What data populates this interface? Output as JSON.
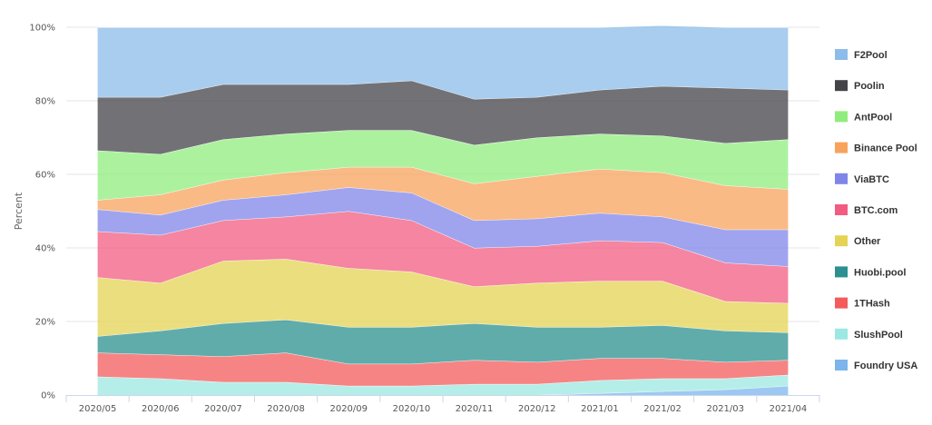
{
  "chart_data": {
    "type": "area",
    "stacked": "percent",
    "title": "",
    "xlabel": "",
    "ylabel": "Percent",
    "ylim": [
      0,
      100
    ],
    "y_ticks": [
      "0%",
      "20%",
      "40%",
      "60%",
      "80%",
      "100%"
    ],
    "grid": "horizontal",
    "legend_position": "right",
    "categories": [
      "2020/05",
      "2020/06",
      "2020/07",
      "2020/08",
      "2020/09",
      "2020/10",
      "2020/11",
      "2020/12",
      "2021/01",
      "2021/02",
      "2021/03",
      "2021/04"
    ],
    "series": [
      {
        "name": "Foundry USA",
        "color": "#7cb5ec",
        "values": [
          0,
          0,
          0,
          0,
          0,
          0,
          0,
          0,
          0.5,
          1,
          1.5,
          2.5
        ]
      },
      {
        "name": "SlushPool",
        "color": "#9ce8e2",
        "values": [
          5,
          4.5,
          3.5,
          3.5,
          2.5,
          2.5,
          3,
          3,
          3.5,
          3.5,
          3,
          3
        ]
      },
      {
        "name": "1THash",
        "color": "#f45b5b",
        "values": [
          6.5,
          6.5,
          7,
          8,
          6,
          6,
          6.5,
          6,
          6,
          5.5,
          4.5,
          4
        ]
      },
      {
        "name": "Huobi.pool",
        "color": "#2b908f",
        "values": [
          4.5,
          6.5,
          9,
          9,
          10,
          10,
          10,
          9.5,
          8.5,
          9,
          8.5,
          7.5
        ]
      },
      {
        "name": "Other",
        "color": "#e4d354",
        "values": [
          16,
          13,
          17,
          16.5,
          16,
          15,
          10,
          12,
          12.5,
          12,
          8,
          8
        ]
      },
      {
        "name": "BTC.com",
        "color": "#f15c80",
        "values": [
          12.5,
          13,
          11,
          11.5,
          15.5,
          14,
          10.5,
          10,
          11,
          10.5,
          10.5,
          10
        ]
      },
      {
        "name": "ViaBTC",
        "color": "#8085e9",
        "values": [
          6,
          5.5,
          5.5,
          6,
          6.5,
          7.5,
          7.5,
          7.5,
          7.5,
          7,
          9,
          10
        ]
      },
      {
        "name": "Binance Pool",
        "color": "#f7a35c",
        "values": [
          2.5,
          5.5,
          5.5,
          6,
          5.5,
          7,
          10,
          11.5,
          12,
          12,
          12,
          11
        ]
      },
      {
        "name": "AntPool",
        "color": "#90ed7d",
        "values": [
          13.5,
          11,
          11,
          10.5,
          10,
          10,
          10.5,
          10.5,
          9.5,
          10,
          11.5,
          13.5
        ]
      },
      {
        "name": "Poolin",
        "color": "#434348",
        "values": [
          14.5,
          15.5,
          15,
          13.5,
          12.5,
          13.5,
          12.5,
          11,
          12,
          13.5,
          15,
          13.5
        ]
      },
      {
        "name": "F2Pool",
        "color": "#8bbcea",
        "values": [
          19,
          19,
          15.5,
          15.5,
          15.5,
          14.5,
          19.5,
          19,
          17,
          16.5,
          16.5,
          17
        ]
      }
    ]
  }
}
